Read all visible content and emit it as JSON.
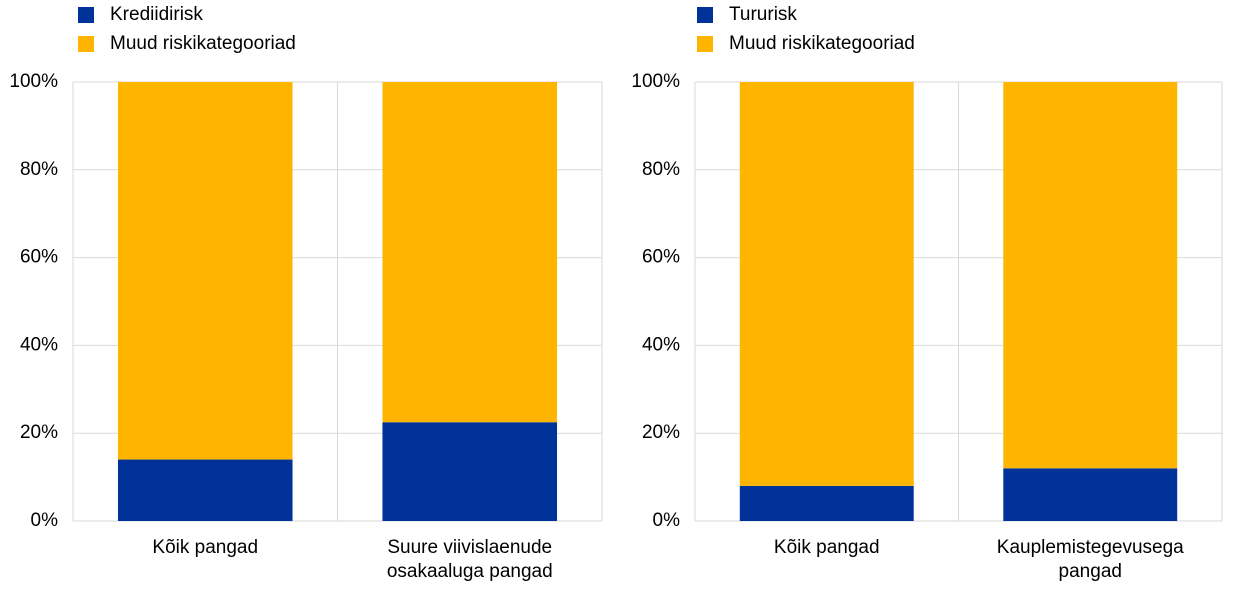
{
  "chart_data": [
    {
      "type": "bar",
      "stacked": true,
      "legend": "top",
      "categories": [
        "Kõik pangad",
        "Suure viivislaenude osakaaluga pangad"
      ],
      "series": [
        {
          "name": "Krediidirisk",
          "color": "#003299",
          "values": [
            14,
            22.5
          ]
        },
        {
          "name": "Muud riskikategooriad",
          "color": "#ffb400",
          "values": [
            86,
            77.5
          ]
        }
      ],
      "ylim": [
        0,
        100
      ],
      "yticks": [
        {
          "value": 0,
          "label": "0%"
        },
        {
          "value": 20,
          "label": "20%"
        },
        {
          "value": 40,
          "label": "40%"
        },
        {
          "value": 60,
          "label": "60%"
        },
        {
          "value": 80,
          "label": "80%"
        },
        {
          "value": 100,
          "label": "100%"
        }
      ],
      "grid": true
    },
    {
      "type": "bar",
      "stacked": true,
      "legend": "top",
      "categories": [
        "Kõik pangad",
        "Kauplemistegevusega pangad"
      ],
      "series": [
        {
          "name": "Tururisk",
          "color": "#003299",
          "values": [
            8,
            12
          ]
        },
        {
          "name": "Muud riskikategooriad",
          "color": "#ffb400",
          "values": [
            92,
            88
          ]
        }
      ],
      "ylim": [
        0,
        100
      ],
      "yticks": [
        {
          "value": 0,
          "label": "0%"
        },
        {
          "value": 20,
          "label": "20%"
        },
        {
          "value": 40,
          "label": "40%"
        },
        {
          "value": 60,
          "label": "60%"
        },
        {
          "value": 80,
          "label": "80%"
        },
        {
          "value": 100,
          "label": "100%"
        }
      ],
      "grid": true
    }
  ]
}
